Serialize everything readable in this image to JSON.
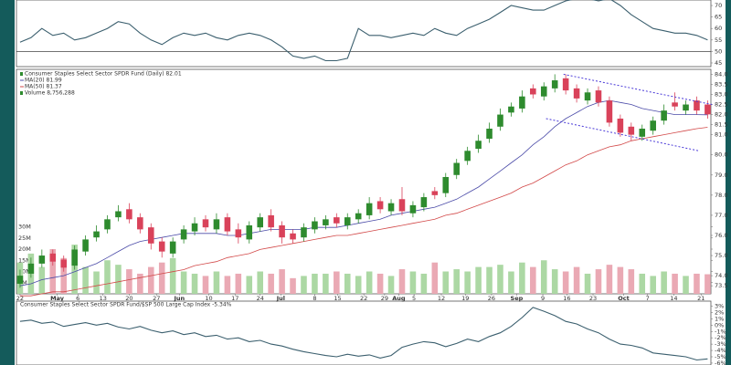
{
  "chart_data": [
    {
      "type": "line",
      "color": "#3b5f6e",
      "reference_line": 50,
      "ylim": [
        43.8,
        72.4
      ],
      "yticks": [
        70,
        65,
        60,
        55,
        50,
        45
      ],
      "values": [
        54,
        56,
        60,
        57,
        58,
        55,
        56,
        58,
        60,
        63,
        62,
        58,
        55,
        53,
        56,
        58,
        57,
        58,
        56,
        55,
        57,
        58,
        57,
        55,
        52,
        48,
        47,
        48,
        46,
        46,
        47,
        60,
        57,
        57,
        56,
        57,
        58,
        57,
        60,
        58,
        57,
        60,
        62,
        64,
        67,
        70,
        69,
        68,
        68,
        70,
        72,
        73,
        73,
        72,
        73,
        70,
        66,
        63,
        60,
        59,
        58,
        58,
        57,
        55
      ]
    },
    {
      "type": "candlestick",
      "name": "Consumer Staples Select Sector SPDR Fund (Daily) 82.01",
      "up_color": "#2e8b2e",
      "down_color": "#d9425a",
      "xlim": [
        -0.33,
        63.3
      ],
      "xticks": [
        {
          "value": 0,
          "label": "22"
        },
        {
          "value": 3.4,
          "label": "May"
        },
        {
          "value": 5.3,
          "label": "6"
        },
        {
          "value": 7.6,
          "label": "13"
        },
        {
          "value": 10.0,
          "label": "20"
        },
        {
          "value": 12.5,
          "label": "27"
        },
        {
          "value": 14.6,
          "label": "Jun"
        },
        {
          "value": 17.3,
          "label": "10"
        },
        {
          "value": 19.7,
          "label": "17"
        },
        {
          "value": 22.0,
          "label": "24"
        },
        {
          "value": 23.9,
          "label": "Jul"
        },
        {
          "value": 27.0,
          "label": "8"
        },
        {
          "value": 29.1,
          "label": "15"
        },
        {
          "value": 31.5,
          "label": "22"
        },
        {
          "value": 33.4,
          "label": "29"
        },
        {
          "value": 34.7,
          "label": "Aug"
        },
        {
          "value": 36.1,
          "label": "5"
        },
        {
          "value": 38.6,
          "label": "12"
        },
        {
          "value": 40.8,
          "label": "19"
        },
        {
          "value": 43.2,
          "label": "26"
        },
        {
          "value": 45.5,
          "label": "Sep"
        },
        {
          "value": 47.9,
          "label": "9"
        },
        {
          "value": 50.1,
          "label": "16"
        },
        {
          "value": 52.5,
          "label": "23"
        },
        {
          "value": 55.3,
          "label": "Oct"
        },
        {
          "value": 57.5,
          "label": "7"
        },
        {
          "value": 59.9,
          "label": "14"
        },
        {
          "value": 62.4,
          "label": "21"
        }
      ],
      "ylim": [
        73.1,
        84.2
      ],
      "yticks": [
        {
          "value": 84,
          "label": "84.0"
        },
        83.5,
        {
          "value": 83,
          "label": "83.0"
        },
        82.5,
        {
          "value": 82,
          "label": "82.0"
        },
        81.5,
        {
          "value": 81,
          "label": "81.0"
        },
        {
          "value": 80,
          "label": "80.0"
        },
        {
          "value": 79,
          "label": "79.0"
        },
        {
          "value": 78,
          "label": "78.0"
        },
        {
          "value": 77,
          "label": "77.0"
        },
        {
          "value": 76,
          "label": "76.0"
        },
        {
          "value": 75,
          "label": "75.0"
        },
        {
          "value": 74,
          "label": "74.0"
        },
        73.5
      ],
      "open": [
        73.6,
        74.1,
        74.6,
        75.1,
        74.8,
        74.5,
        75.2,
        75.9,
        76.3,
        76.9,
        77.3,
        76.9,
        76.4,
        75.7,
        75.1,
        75.8,
        76.2,
        76.8,
        76.3,
        76.9,
        76.3,
        75.8,
        76.4,
        77.0,
        76.5,
        76.1,
        75.9,
        76.3,
        76.5,
        76.9,
        76.5,
        76.8,
        77.0,
        77.7,
        77.2,
        77.8,
        77.1,
        77.4,
        78.2,
        78.1,
        79.0,
        79.7,
        80.3,
        80.8,
        81.4,
        82.1,
        82.3,
        83.3,
        82.9,
        83.3,
        83.8,
        83.3,
        82.7,
        83.2,
        82.7,
        81.8,
        81.4,
        80.9,
        81.2,
        81.7,
        82.6,
        82.2,
        82.7,
        82.5
      ],
      "high": [
        74.3,
        74.9,
        75.3,
        75.3,
        75.0,
        75.5,
        76.0,
        76.5,
        77.0,
        77.5,
        77.6,
        77.1,
        76.6,
        75.9,
        75.9,
        76.5,
        76.9,
        77.0,
        77.1,
        77.1,
        76.6,
        76.7,
        77.1,
        77.3,
        76.7,
        76.3,
        76.6,
        76.9,
        77.0,
        77.1,
        77.1,
        77.3,
        77.9,
        77.9,
        77.8,
        78.4,
        77.7,
        78.1,
        78.4,
        79.1,
        79.8,
        80.4,
        81.0,
        81.6,
        82.3,
        82.6,
        83.2,
        83.5,
        83.6,
        84.0,
        84.0,
        83.5,
        83.3,
        83.4,
        82.9,
        82.0,
        81.6,
        81.5,
        81.9,
        82.5,
        83.1,
        82.7,
        82.9,
        82.7
      ],
      "low": [
        73.4,
        73.9,
        74.4,
        74.5,
        74.2,
        74.3,
        75.0,
        75.7,
        76.1,
        76.7,
        76.6,
        76.1,
        75.3,
        74.9,
        74.9,
        75.6,
        76.0,
        76.2,
        76.1,
        76.0,
        75.6,
        75.6,
        76.2,
        76.2,
        75.6,
        75.6,
        75.7,
        76.1,
        76.3,
        76.4,
        76.3,
        76.6,
        76.8,
        77.1,
        77.0,
        77.0,
        76.9,
        77.2,
        77.8,
        77.9,
        78.8,
        79.5,
        80.1,
        80.6,
        81.2,
        81.9,
        82.1,
        82.8,
        82.7,
        83.1,
        83.0,
        82.6,
        82.5,
        82.4,
        81.4,
        80.9,
        80.7,
        80.7,
        81.0,
        81.5,
        82.2,
        82.0,
        82.0,
        81.8
      ],
      "close": [
        74.0,
        74.6,
        75.0,
        74.7,
        74.4,
        75.3,
        75.8,
        76.2,
        76.8,
        77.2,
        76.8,
        76.3,
        75.6,
        75.2,
        75.7,
        76.3,
        76.6,
        76.4,
        76.8,
        76.2,
        75.9,
        76.5,
        76.9,
        76.4,
        75.9,
        75.8,
        76.4,
        76.7,
        76.8,
        76.6,
        76.9,
        77.1,
        77.6,
        77.3,
        77.6,
        77.2,
        77.5,
        77.9,
        78.0,
        78.9,
        79.6,
        80.2,
        80.7,
        81.3,
        82.0,
        82.4,
        82.9,
        83.0,
        83.4,
        83.7,
        83.2,
        82.8,
        83.1,
        82.6,
        81.6,
        81.1,
        81.0,
        81.3,
        81.7,
        82.2,
        82.4,
        82.5,
        82.2,
        82.01
      ],
      "series": [
        {
          "name": "MA(20) 81.99",
          "color": "#4b4ba8",
          "values": [
            73.5,
            73.6,
            73.8,
            73.9,
            74.0,
            74.2,
            74.4,
            74.6,
            74.9,
            75.2,
            75.5,
            75.7,
            75.8,
            75.9,
            76.0,
            76.1,
            76.1,
            76.1,
            76.1,
            76.0,
            76.0,
            76.1,
            76.2,
            76.3,
            76.3,
            76.3,
            76.3,
            76.4,
            76.4,
            76.4,
            76.5,
            76.6,
            76.7,
            76.8,
            77.0,
            77.1,
            77.2,
            77.3,
            77.4,
            77.6,
            77.8,
            78.1,
            78.4,
            78.8,
            79.2,
            79.6,
            80.0,
            80.5,
            80.9,
            81.4,
            81.8,
            82.1,
            82.4,
            82.6,
            82.7,
            82.6,
            82.5,
            82.3,
            82.2,
            82.1,
            82.0,
            82.0,
            82.0,
            81.99
          ]
        },
        {
          "name": "MA(50) 81.37",
          "color": "#d24848",
          "values": [
            73.0,
            73.0,
            73.1,
            73.2,
            73.2,
            73.3,
            73.4,
            73.5,
            73.6,
            73.7,
            73.8,
            73.9,
            74.0,
            74.1,
            74.2,
            74.3,
            74.5,
            74.6,
            74.7,
            74.9,
            75.0,
            75.1,
            75.3,
            75.4,
            75.5,
            75.6,
            75.7,
            75.8,
            75.9,
            76.0,
            76.0,
            76.1,
            76.2,
            76.3,
            76.4,
            76.5,
            76.6,
            76.7,
            76.8,
            77.0,
            77.1,
            77.3,
            77.5,
            77.7,
            77.9,
            78.1,
            78.4,
            78.6,
            78.9,
            79.2,
            79.5,
            79.7,
            80.0,
            80.2,
            80.4,
            80.5,
            80.7,
            80.8,
            80.9,
            81.0,
            81.1,
            81.2,
            81.3,
            81.37
          ]
        }
      ],
      "volume": {
        "name": "Volume 8,756,288",
        "up_color": "#acd8a4",
        "down_color": "#eaa9b4",
        "ylim": [
          0,
          100000000
        ],
        "yticks": [
          {
            "value": 30000000,
            "label": "30M"
          },
          {
            "value": 25000000,
            "label": "25M"
          },
          {
            "value": 20000000,
            "label": "20M"
          },
          {
            "value": 15000000,
            "label": "15M"
          },
          {
            "value": 10000000,
            "label": "10M"
          },
          {
            "value": 5000000,
            "label": "5M"
          }
        ],
        "values": [
          14000000,
          18000000,
          12000000,
          20000000,
          16000000,
          22000000,
          12000000,
          10000000,
          15000000,
          13000000,
          11000000,
          9000000,
          12000000,
          14000000,
          16000000,
          10000000,
          9000000,
          8000000,
          10000000,
          8000000,
          9000000,
          8000000,
          10000000,
          9000000,
          11000000,
          7000000,
          8000000,
          9000000,
          9000000,
          10000000,
          9000000,
          8000000,
          10000000,
          9000000,
          8000000,
          11000000,
          10000000,
          9000000,
          14000000,
          10000000,
          11000000,
          10000000,
          12000000,
          12000000,
          13000000,
          10000000,
          14000000,
          12000000,
          15000000,
          11000000,
          10000000,
          12000000,
          9000000,
          11000000,
          13000000,
          12000000,
          11000000,
          9000000,
          8000000,
          10000000,
          9000000,
          8000000,
          9000000,
          8756288
        ]
      },
      "trend_color": "#4a3ad8",
      "trendlines": [
        {
          "x": [
            49.8,
            63.4
          ],
          "y": [
            84.0,
            82.5
          ]
        },
        {
          "x": [
            48.2,
            62.2
          ],
          "y": [
            81.8,
            80.2
          ]
        }
      ]
    },
    {
      "type": "line",
      "title": "Consumer Staples Select Sector SPDR Fund/$SP 500 Large Cap Index -5.34%",
      "color": "#3b5f6e",
      "ylim": [
        -6.3,
        3.8
      ],
      "yticks": [
        {
          "value": 3,
          "label": "3%"
        },
        {
          "value": 2,
          "label": "2%"
        },
        {
          "value": 1,
          "label": "1%"
        },
        {
          "value": 0,
          "label": "0%"
        },
        {
          "value": -1,
          "label": "-1%"
        },
        {
          "value": -2,
          "label": "-2%"
        },
        {
          "value": -3,
          "label": "-3%"
        },
        {
          "value": -4,
          "label": "-4%"
        },
        {
          "value": -5,
          "label": "-5%"
        },
        {
          "value": -6,
          "label": "-6%"
        }
      ],
      "values": [
        0.6,
        0.8,
        0.3,
        0.5,
        -0.2,
        0.1,
        0.4,
        0.0,
        0.3,
        -0.3,
        -0.6,
        -0.2,
        -0.8,
        -1.2,
        -0.9,
        -1.5,
        -1.2,
        -1.8,
        -1.6,
        -2.2,
        -2.0,
        -2.6,
        -2.4,
        -3.0,
        -3.3,
        -3.8,
        -4.2,
        -4.5,
        -4.8,
        -5.0,
        -4.6,
        -4.9,
        -4.7,
        -5.2,
        -4.8,
        -3.5,
        -3.0,
        -2.6,
        -2.8,
        -3.4,
        -2.9,
        -2.2,
        -2.6,
        -1.8,
        -1.2,
        -0.2,
        1.2,
        2.8,
        2.2,
        1.5,
        0.6,
        0.2,
        -0.6,
        -1.2,
        -2.2,
        -3.0,
        -3.2,
        -3.6,
        -4.4,
        -4.6,
        -4.8,
        -5.0,
        -5.5,
        -5.34
      ]
    }
  ]
}
